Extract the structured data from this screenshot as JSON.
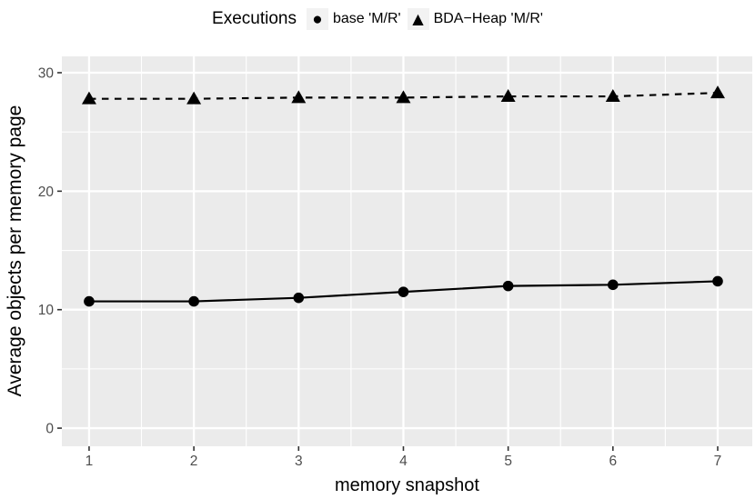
{
  "figure": {
    "legend": {
      "title": "Executions",
      "items": [
        {
          "glyph": "●",
          "label": "base 'M/R'",
          "marker": "circle"
        },
        {
          "glyph": "▲",
          "label": "BDA−Heap 'M/R'",
          "marker": "triangle"
        }
      ],
      "key_fill": "#F2F2F2"
    },
    "x_axis_title": "memory snapshot",
    "y_axis_title": "Average objects per memory page"
  },
  "chart_data": {
    "type": "line",
    "title": "Executions",
    "xlabel": "memory snapshot",
    "ylabel": "Average objects per memory page",
    "x": [
      1,
      2,
      3,
      4,
      5,
      6,
      7
    ],
    "x_tick_labels": [
      "1",
      "2",
      "3",
      "4",
      "5",
      "6",
      "7"
    ],
    "y_ticks": [
      0,
      10,
      20,
      30
    ],
    "y_tick_labels": [
      "0",
      "10",
      "20",
      "30"
    ],
    "y_minor_ticks": [
      5,
      15,
      25
    ],
    "series": [
      {
        "name": "base 'M/R'",
        "marker": "circle",
        "linetype": "solid",
        "color": "#000000",
        "values": [
          10.7,
          10.7,
          11.0,
          11.5,
          12.0,
          12.1,
          12.4
        ]
      },
      {
        "name": "BDA−Heap 'M/R'",
        "marker": "triangle",
        "linetype": "dashed",
        "color": "#000000",
        "values": [
          27.8,
          27.8,
          27.9,
          27.9,
          28.0,
          28.0,
          28.3
        ]
      }
    ],
    "xlim": [
      0.74,
      7.33
    ],
    "ylim": [
      -1.53,
      31.38
    ],
    "grid": true,
    "legend_position": "top",
    "colors": {
      "panel_bg": "#EBEBEB",
      "grid": "#FFFFFF",
      "tick_label": "#4D4D4D",
      "tick_mark": "#333333",
      "axis_title": "#000000",
      "series": "#000000"
    }
  }
}
